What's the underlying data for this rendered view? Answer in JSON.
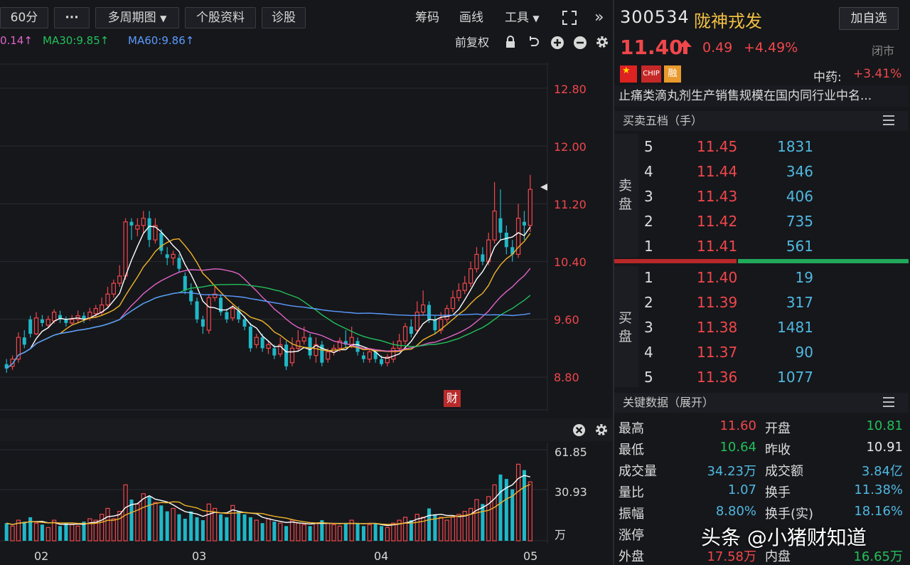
{
  "toolbar": {
    "period": "60分",
    "more": "···",
    "multi_period": "多周期图",
    "stock_info": "个股资料",
    "diagnose": "诊股",
    "chips": "筹码",
    "draw": "画线",
    "tools": "工具",
    "expand_icon": "fullscreen-icon",
    "collapse": "»"
  },
  "ma": {
    "ma_partial": "0.14↑",
    "ma30": "MA30:9.85↑",
    "ma60": "MA60:9.86↑"
  },
  "chart_tools": {
    "adjust": "前复权"
  },
  "chart_data": [
    {
      "type": "candlestick",
      "y_ticks": [
        "12.80",
        "12.00",
        "11.20",
        "10.40",
        "9.60",
        "8.80"
      ],
      "ylim": [
        8.8,
        12.8
      ],
      "x_ticks": [
        "02",
        "03",
        "04",
        "05"
      ],
      "candles": [
        [
          8.98,
          8.92,
          9.05,
          8.86
        ],
        [
          8.95,
          9.05,
          9.1,
          8.9
        ],
        [
          9.05,
          9.35,
          9.42,
          9.0
        ],
        [
          9.35,
          9.25,
          9.45,
          9.2
        ],
        [
          9.6,
          9.4,
          9.65,
          9.35
        ],
        [
          9.4,
          9.62,
          9.7,
          9.38
        ],
        [
          9.6,
          9.55,
          9.66,
          9.5
        ],
        [
          9.52,
          9.6,
          9.65,
          9.48
        ],
        [
          9.58,
          9.7,
          9.74,
          9.54
        ],
        [
          9.66,
          9.6,
          9.72,
          9.55
        ],
        [
          9.6,
          9.55,
          9.64,
          9.5
        ],
        [
          9.55,
          9.6,
          9.66,
          9.52
        ],
        [
          9.6,
          9.65,
          9.72,
          9.55
        ],
        [
          9.65,
          9.6,
          9.7,
          9.55
        ],
        [
          9.62,
          9.7,
          9.76,
          9.58
        ],
        [
          9.68,
          9.75,
          9.8,
          9.62
        ],
        [
          9.7,
          9.8,
          9.9,
          9.65
        ],
        [
          9.8,
          9.95,
          10.05,
          9.75
        ],
        [
          9.95,
          10.1,
          10.15,
          9.9
        ],
        [
          10.1,
          10.2,
          10.35,
          10.05
        ],
        [
          10.2,
          10.95,
          11.0,
          10.15
        ],
        [
          10.95,
          10.9,
          11.0,
          10.7
        ],
        [
          10.85,
          10.9,
          11.0,
          10.75
        ],
        [
          10.9,
          11.0,
          11.1,
          10.8
        ],
        [
          11.0,
          10.7,
          11.1,
          10.6
        ],
        [
          10.7,
          10.9,
          11.0,
          10.65
        ],
        [
          10.8,
          10.55,
          10.85,
          10.5
        ],
        [
          10.5,
          10.45,
          10.6,
          10.35
        ],
        [
          10.45,
          10.5,
          10.55,
          10.35
        ],
        [
          10.45,
          10.3,
          10.5,
          10.25
        ],
        [
          10.2,
          10.0,
          10.25,
          9.95
        ],
        [
          10.0,
          9.85,
          10.1,
          9.8
        ],
        [
          9.85,
          9.6,
          9.9,
          9.55
        ],
        [
          9.6,
          9.5,
          9.65,
          9.4
        ],
        [
          9.45,
          9.9,
          9.95,
          9.4
        ],
        [
          9.9,
          9.95,
          10.05,
          9.85
        ],
        [
          9.9,
          9.7,
          9.95,
          9.65
        ],
        [
          9.7,
          9.6,
          9.75,
          9.55
        ],
        [
          9.62,
          9.75,
          9.8,
          9.58
        ],
        [
          9.72,
          9.6,
          9.78,
          9.55
        ],
        [
          9.6,
          9.5,
          9.65,
          9.45
        ],
        [
          9.5,
          9.2,
          9.55,
          9.15
        ],
        [
          9.25,
          9.35,
          9.4,
          9.2
        ],
        [
          9.35,
          9.2,
          9.4,
          9.15
        ],
        [
          9.2,
          9.25,
          9.3,
          9.12
        ],
        [
          9.2,
          9.1,
          9.25,
          9.05
        ],
        [
          9.12,
          9.25,
          9.35,
          9.08
        ],
        [
          9.25,
          8.95,
          9.3,
          8.9
        ],
        [
          9.0,
          9.2,
          9.35,
          8.95
        ],
        [
          9.2,
          9.3,
          9.45,
          9.15
        ],
        [
          9.3,
          9.35,
          9.5,
          9.25
        ],
        [
          9.35,
          9.1,
          9.4,
          9.05
        ],
        [
          9.1,
          9.25,
          9.35,
          9.0
        ],
        [
          9.25,
          9.0,
          9.3,
          8.95
        ],
        [
          9.05,
          9.15,
          9.2,
          9.0
        ],
        [
          9.15,
          9.2,
          9.25,
          9.1
        ],
        [
          9.2,
          9.3,
          9.35,
          9.15
        ],
        [
          9.3,
          9.25,
          9.45,
          9.2
        ],
        [
          9.25,
          9.35,
          9.5,
          9.2
        ],
        [
          9.3,
          9.15,
          9.35,
          9.1
        ],
        [
          9.1,
          9.05,
          9.15,
          9.0
        ],
        [
          9.05,
          9.15,
          9.2,
          9.0
        ],
        [
          9.15,
          9.05,
          9.18,
          9.0
        ],
        [
          9.05,
          8.98,
          9.1,
          8.95
        ],
        [
          9.0,
          9.08,
          9.12,
          8.95
        ],
        [
          9.05,
          9.2,
          9.3,
          9.0
        ],
        [
          9.2,
          9.3,
          9.4,
          9.15
        ],
        [
          9.3,
          9.5,
          9.55,
          9.25
        ],
        [
          9.5,
          9.4,
          9.6,
          9.35
        ],
        [
          9.45,
          9.7,
          9.85,
          9.4
        ],
        [
          9.7,
          9.8,
          10.0,
          9.65
        ],
        [
          9.8,
          9.6,
          9.85,
          9.55
        ],
        [
          9.6,
          9.45,
          9.65,
          9.4
        ],
        [
          9.45,
          9.6,
          9.7,
          9.4
        ],
        [
          9.6,
          9.75,
          9.8,
          9.55
        ],
        [
          9.75,
          9.9,
          10.0,
          9.7
        ],
        [
          9.9,
          10.0,
          10.1,
          9.85
        ],
        [
          10.0,
          10.1,
          10.2,
          9.95
        ],
        [
          10.1,
          10.3,
          10.4,
          10.05
        ],
        [
          10.3,
          10.5,
          10.6,
          10.25
        ],
        [
          10.5,
          10.4,
          10.6,
          10.35
        ],
        [
          10.4,
          10.7,
          10.8,
          10.35
        ],
        [
          10.7,
          11.1,
          11.5,
          10.65
        ],
        [
          11.0,
          10.8,
          11.4,
          10.7
        ],
        [
          10.8,
          10.6,
          10.9,
          10.5
        ],
        [
          10.6,
          10.5,
          10.7,
          10.4
        ],
        [
          10.5,
          11.0,
          11.2,
          10.45
        ],
        [
          10.95,
          10.9,
          11.1,
          10.7
        ],
        [
          10.9,
          11.4,
          11.6,
          10.81
        ]
      ]
    },
    {
      "type": "bar",
      "y_ticks": [
        "61.85",
        "30.93"
      ],
      "unit": "万",
      "ylim": [
        0,
        61.85
      ],
      "values": [
        12,
        10,
        14,
        13,
        16,
        12,
        11,
        9,
        14,
        10,
        12,
        11,
        10,
        13,
        15,
        14,
        18,
        22,
        15,
        20,
        38,
        28,
        25,
        32,
        30,
        26,
        24,
        20,
        22,
        18,
        15,
        20,
        16,
        14,
        25,
        22,
        18,
        16,
        24,
        20,
        18,
        16,
        14,
        12,
        15,
        13,
        12,
        10,
        14,
        12,
        11,
        10,
        12,
        14,
        12,
        11,
        10,
        12,
        14,
        12,
        10,
        11,
        12,
        10,
        9,
        12,
        14,
        16,
        14,
        18,
        16,
        22,
        18,
        16,
        14,
        16,
        18,
        20,
        22,
        28,
        25,
        30,
        38,
        45,
        42,
        35,
        52,
        48,
        40
      ]
    }
  ],
  "stock": {
    "code": "300534",
    "name": "陇神戎发",
    "watch_button": "加自选",
    "price": "11.40",
    "change": "0.49",
    "change_pct": "+4.49%",
    "status": "闭市",
    "tags": [
      "CN",
      "CHIP",
      "融"
    ],
    "sector_label": "中药:",
    "sector_change": "+3.41%",
    "description": "止痛类滴丸剂生产销售规模在国内同行业中名..."
  },
  "orderbook": {
    "title": "买卖五档（手）",
    "sell_label": [
      "卖",
      "盘"
    ],
    "buy_label": [
      "买",
      "盘"
    ],
    "sells": [
      {
        "level": "5",
        "price": "11.45",
        "volume": "1831"
      },
      {
        "level": "4",
        "price": "11.44",
        "volume": "346"
      },
      {
        "level": "3",
        "price": "11.43",
        "volume": "406"
      },
      {
        "level": "2",
        "price": "11.42",
        "volume": "735"
      },
      {
        "level": "1",
        "price": "11.41",
        "volume": "561"
      }
    ],
    "buys": [
      {
        "level": "1",
        "price": "11.40",
        "volume": "19"
      },
      {
        "level": "2",
        "price": "11.39",
        "volume": "317"
      },
      {
        "level": "3",
        "price": "11.38",
        "volume": "1481"
      },
      {
        "level": "4",
        "price": "11.37",
        "volume": "90"
      },
      {
        "level": "5",
        "price": "11.36",
        "volume": "1077"
      }
    ],
    "sell_ratio": 0.42
  },
  "key_data": {
    "title": "关键数据（展开）",
    "rows": [
      {
        "l1": "最高",
        "v1": "11.60",
        "l2": "开盘",
        "v2": "10.81"
      },
      {
        "l1": "最低",
        "v1": "10.64",
        "l2": "昨收",
        "v2": "10.91"
      },
      {
        "l1": "成交量",
        "v1": "34.23万",
        "l2": "成交额",
        "v2": "3.84亿"
      },
      {
        "l1": "量比",
        "v1": "1.07",
        "l2": "换手",
        "v2": "11.38%"
      },
      {
        "l1": "振幅",
        "v1": "8.80%",
        "l2": "换手(实)",
        "v2": "18.16%"
      },
      {
        "l1": "涨停",
        "v1": "",
        "l2": "",
        "v2": ""
      },
      {
        "l1": "外盘",
        "v1": "17.58万",
        "l2": "内盘",
        "v2": "16.65万"
      }
    ]
  },
  "badge": {
    "cai": "财"
  },
  "watermark": "头条 @小猪财知道"
}
